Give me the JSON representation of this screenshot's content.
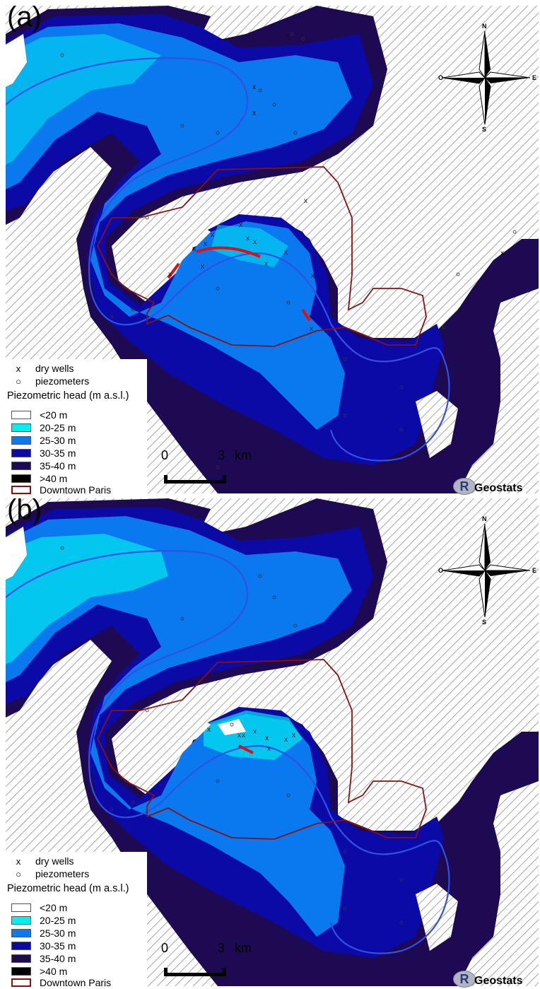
{
  "figure": {
    "panels": [
      {
        "label": "(a)"
      },
      {
        "label": "(b)"
      }
    ]
  },
  "legend": {
    "points": [
      {
        "symbol": "x",
        "label": "dry wells"
      },
      {
        "symbol": "○",
        "label": "piezometers"
      }
    ],
    "title": "Piezometric head (m a.s.l.)",
    "classes": [
      {
        "label": "<20 m",
        "color": "#ffffff"
      },
      {
        "label": "20-25 m",
        "color": "#00f0f0"
      },
      {
        "label": "25-30 m",
        "color": "#0a78ee"
      },
      {
        "label": "30-35 m",
        "color": "#0b0aa6"
      },
      {
        "label": "35-40 m",
        "color": "#1d0a52"
      },
      {
        "label": ">40 m",
        "color": "#000000"
      }
    ],
    "boundary": {
      "label": "Downtown Paris",
      "color": "#8b1010"
    }
  },
  "scalebar": {
    "start": "0",
    "end": "3",
    "unit": "km"
  },
  "compass": {
    "north": "N",
    "south": "S",
    "east": "E",
    "west": "O"
  },
  "logo": {
    "text": "Geostats",
    "glyph": "R"
  },
  "colors": {
    "hatch": "#9a9a9a",
    "river": "#3050e8",
    "dry_zone": "#e01010"
  }
}
